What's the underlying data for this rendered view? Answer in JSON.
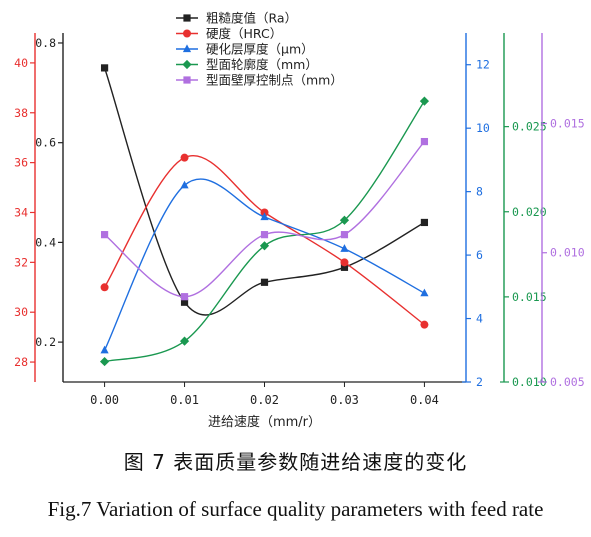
{
  "chart_data": {
    "type": "line",
    "xlabel": "进给速度（mm/r）",
    "x": [
      0.0,
      0.01,
      0.02,
      0.03,
      0.04
    ],
    "x_ticks": [
      "0.00",
      "0.01",
      "0.02",
      "0.03",
      "0.04"
    ],
    "legend_position": "top-center",
    "grid": false,
    "axes": [
      {
        "id": "y_ra",
        "side": "left",
        "color": "#222222",
        "range": [
          0.12,
          0.82
        ],
        "ticks": [
          "0.2",
          "0.4",
          "0.6",
          "0.8"
        ],
        "tick_values": [
          0.2,
          0.4,
          0.6,
          0.8
        ]
      },
      {
        "id": "y_hrc",
        "side": "left",
        "color": "#e8302f",
        "range": [
          27.2,
          41.2
        ],
        "ticks": [
          "28",
          "30",
          "32",
          "34",
          "36",
          "38",
          "40"
        ],
        "tick_values": [
          28,
          30,
          32,
          34,
          36,
          38,
          40
        ]
      },
      {
        "id": "y_depth",
        "side": "right",
        "color": "#1f6fe0",
        "range": [
          2,
          13
        ],
        "ticks": [
          "2",
          "4",
          "6",
          "8",
          "10",
          "12"
        ],
        "tick_values": [
          2,
          4,
          6,
          8,
          10,
          12
        ]
      },
      {
        "id": "y_profile",
        "side": "right",
        "color": "#1a9850",
        "range": [
          0.01,
          0.0305
        ],
        "ticks": [
          "0.010",
          "0.015",
          "0.020",
          "0.025"
        ],
        "tick_values": [
          0.01,
          0.015,
          0.02,
          0.025
        ]
      },
      {
        "id": "y_wall",
        "side": "right",
        "color": "#b070e0",
        "range": [
          0.005,
          0.0185
        ],
        "ticks": [
          "0.005",
          "0.010",
          "0.015"
        ],
        "tick_values": [
          0.005,
          0.01,
          0.015
        ]
      }
    ],
    "series": [
      {
        "name": "粗糙度值（Ra）",
        "axis": "y_ra",
        "color": "#222222",
        "marker": "square",
        "values": [
          0.75,
          0.28,
          0.32,
          0.35,
          0.44
        ]
      },
      {
        "name": "硬度（HRC）",
        "axis": "y_hrc",
        "color": "#e8302f",
        "marker": "circle",
        "values": [
          31.0,
          36.2,
          34.0,
          32.0,
          29.5
        ]
      },
      {
        "name": "硬化层厚度（μm）",
        "axis": "y_depth",
        "color": "#1f6fe0",
        "marker": "triangle",
        "values": [
          3.0,
          8.2,
          7.2,
          6.2,
          4.8
        ]
      },
      {
        "name": "型面轮廓度（mm）",
        "axis": "y_profile",
        "color": "#1a9850",
        "marker": "diamond",
        "values": [
          0.0112,
          0.0124,
          0.018,
          0.0195,
          0.0265
        ]
      },
      {
        "name": "型面壁厚控制点（mm）",
        "axis": "y_wall",
        "color": "#b070e0",
        "marker": "square",
        "values": [
          0.0107,
          0.0083,
          0.0107,
          0.0107,
          0.0143
        ]
      }
    ]
  },
  "caption_cn": "图 7  表面质量参数随进给速度的变化",
  "caption_en": "Fig.7 Variation of surface quality parameters with feed rate"
}
